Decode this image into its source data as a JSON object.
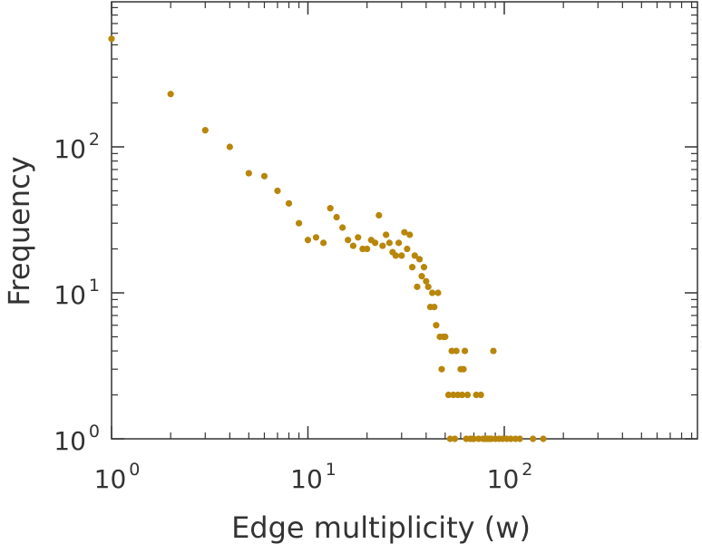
{
  "chart_data": {
    "type": "scatter",
    "xlabel": "Edge multiplicity (w)",
    "ylabel": "Frequency",
    "x_scale": "log",
    "y_scale": "log",
    "xlim": [
      1,
      1000
    ],
    "ylim": [
      1,
      1000
    ],
    "grid": false,
    "point_color": "#B8860B",
    "x_ticks": [
      {
        "base": "10",
        "exp": "0",
        "value": 1
      },
      {
        "base": "10",
        "exp": "1",
        "value": 10
      },
      {
        "base": "10",
        "exp": "2",
        "value": 100
      }
    ],
    "y_ticks": [
      {
        "base": "10",
        "exp": "0",
        "value": 1
      },
      {
        "base": "10",
        "exp": "1",
        "value": 10
      },
      {
        "base": "10",
        "exp": "2",
        "value": 100
      }
    ],
    "series": [
      {
        "points": [
          [
            1,
            550
          ],
          [
            2,
            230
          ],
          [
            3,
            130
          ],
          [
            4,
            100
          ],
          [
            5,
            66
          ],
          [
            6,
            63
          ],
          [
            7,
            50
          ],
          [
            8,
            41
          ],
          [
            9,
            30
          ],
          [
            10,
            23
          ],
          [
            11,
            24
          ],
          [
            12,
            22
          ],
          [
            13,
            38
          ],
          [
            14,
            33
          ],
          [
            15,
            28
          ],
          [
            16,
            23
          ],
          [
            17,
            21
          ],
          [
            18,
            24
          ],
          [
            19,
            20
          ],
          [
            20,
            20
          ],
          [
            21,
            23
          ],
          [
            22,
            22
          ],
          [
            23,
            34
          ],
          [
            24,
            21
          ],
          [
            25,
            25
          ],
          [
            26,
            22
          ],
          [
            27,
            19
          ],
          [
            28,
            18
          ],
          [
            29,
            22
          ],
          [
            30,
            18
          ],
          [
            31,
            26
          ],
          [
            32,
            20
          ],
          [
            33,
            25
          ],
          [
            34,
            15
          ],
          [
            35,
            18
          ],
          [
            36,
            11
          ],
          [
            37,
            17
          ],
          [
            38,
            13
          ],
          [
            39,
            15
          ],
          [
            40,
            12
          ],
          [
            41,
            11
          ],
          [
            42,
            8
          ],
          [
            43,
            10
          ],
          [
            44,
            8
          ],
          [
            45,
            6
          ],
          [
            46,
            10
          ],
          [
            47,
            5
          ],
          [
            48,
            3
          ],
          [
            49,
            5
          ],
          [
            50,
            5
          ],
          [
            52,
            2
          ],
          [
            53,
            1
          ],
          [
            54,
            4
          ],
          [
            55,
            2
          ],
          [
            56,
            1
          ],
          [
            57,
            4
          ],
          [
            58,
            2
          ],
          [
            60,
            3
          ],
          [
            61,
            2
          ],
          [
            62,
            3
          ],
          [
            63,
            4
          ],
          [
            64,
            1
          ],
          [
            65,
            2
          ],
          [
            67,
            1
          ],
          [
            69,
            1
          ],
          [
            70,
            1
          ],
          [
            72,
            2
          ],
          [
            74,
            1
          ],
          [
            76,
            2
          ],
          [
            78,
            1
          ],
          [
            80,
            1
          ],
          [
            82,
            1
          ],
          [
            84,
            1
          ],
          [
            86,
            1
          ],
          [
            88,
            4
          ],
          [
            90,
            1
          ],
          [
            94,
            1
          ],
          [
            98,
            1
          ],
          [
            103,
            1
          ],
          [
            108,
            1
          ],
          [
            114,
            1
          ],
          [
            120,
            1
          ],
          [
            140,
            1
          ],
          [
            158,
            1
          ]
        ]
      }
    ]
  }
}
